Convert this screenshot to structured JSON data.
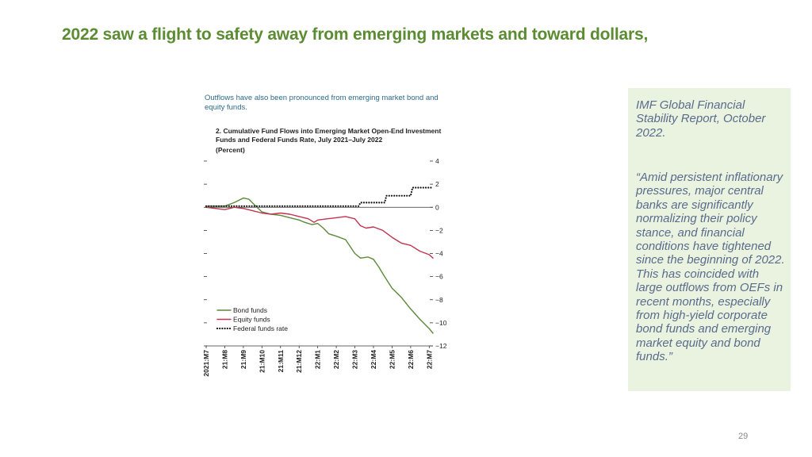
{
  "slide": {
    "title": "2022 saw a flight to safety away from emerging markets and toward dollars,",
    "page_number": "29"
  },
  "figure": {
    "intro": "Outflows have also been pronounced from emerging market bond and equity funds."
  },
  "quote": {
    "source": "IMF Global Financial Stability Report, October 2022.",
    "text": "“Amid persistent inflationary pressures, major central banks are significantly normalizing their policy stance, and financial conditions have tightened since the beginning of 2022. This has coincided with large outflows from OEFs in recent months, especially from high-yield corporate bond funds and emerging market equity and bond funds.”"
  },
  "chart_data": {
    "type": "line",
    "title": "2. Cumulative Fund Flows into Emerging Market Open-End Investment Funds and Federal Funds Rate, July 2021–July 2022",
    "subtitle": "(Percent)",
    "ylim": [
      -12,
      4
    ],
    "yticks": [
      4,
      2,
      0,
      -2,
      -4,
      -6,
      -8,
      -10,
      -12
    ],
    "ytick_labels": [
      "4",
      "2",
      "0",
      "−2",
      "−4",
      "−6",
      "−8",
      "−10",
      "−12"
    ],
    "categories": [
      "2021:M7",
      "21:M8",
      "21:M9",
      "21:M10",
      "21:M11",
      "21:M12",
      "22:M1",
      "22:M2",
      "22:M3",
      "22:M4",
      "22:M5",
      "22:M6",
      "22:M7"
    ],
    "x_range": [
      0,
      12.2
    ],
    "series": [
      {
        "name": "Bond funds",
        "color": "#5a8a3a",
        "style": "solid",
        "x": [
          0,
          1,
          1.5,
          2,
          2.3,
          2.6,
          3,
          3.5,
          4,
          4.5,
          5,
          5.3,
          5.7,
          6,
          6.3,
          6.6,
          7,
          7.5,
          8,
          8.3,
          8.7,
          9,
          9.3,
          9.6,
          10,
          10.5,
          11,
          11.5,
          12,
          12.2
        ],
        "values": [
          0.1,
          0.1,
          0.4,
          0.8,
          0.7,
          0.2,
          -0.4,
          -0.6,
          -0.7,
          -0.9,
          -1.1,
          -1.3,
          -1.5,
          -1.4,
          -1.8,
          -2.3,
          -2.5,
          -2.8,
          -4.0,
          -4.4,
          -4.3,
          -4.5,
          -5.2,
          -6.0,
          -7.0,
          -7.8,
          -8.8,
          -9.7,
          -10.5,
          -10.9
        ]
      },
      {
        "name": "Equity funds",
        "color": "#c4334f",
        "style": "solid",
        "x": [
          0,
          0.5,
          1,
          1.5,
          2,
          2.5,
          3,
          3.5,
          4,
          4.5,
          5,
          5.5,
          5.8,
          6,
          6.5,
          7,
          7.5,
          8,
          8.3,
          8.6,
          9,
          9.5,
          10,
          10.5,
          11,
          11.5,
          12,
          12.2
        ],
        "values": [
          0,
          -0.1,
          -0.2,
          0,
          -0.1,
          -0.3,
          -0.5,
          -0.6,
          -0.5,
          -0.6,
          -0.8,
          -1.0,
          -1.3,
          -1.1,
          -1.0,
          -0.9,
          -0.8,
          -1.0,
          -1.6,
          -1.8,
          -1.7,
          -2.0,
          -2.6,
          -3.1,
          -3.3,
          -3.8,
          -4.1,
          -4.4
        ]
      },
      {
        "name": "Federal funds rate",
        "color": "#111111",
        "style": "dotted",
        "step": true,
        "x": [
          0,
          8.2,
          8.3,
          9.6,
          9.7,
          11,
          11.1,
          12.2
        ],
        "values": [
          0.1,
          0.1,
          0.4,
          0.4,
          1.0,
          1.0,
          1.7,
          1.7
        ]
      }
    ]
  }
}
